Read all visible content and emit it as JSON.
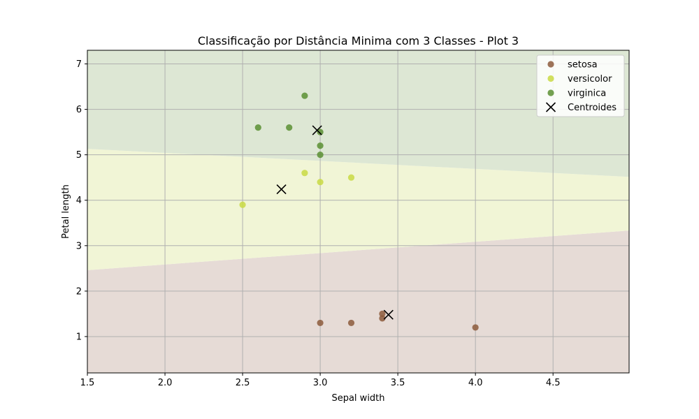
{
  "chart_data": {
    "type": "scatter",
    "title": "Classificação por Distância Minima com 3 Classes - Plot 3",
    "xlabel": "Sepal width",
    "ylabel": "Petal length",
    "xlim": [
      1.5,
      4.99
    ],
    "ylim": [
      0.2,
      7.3
    ],
    "xticks": [
      1.5,
      2.0,
      2.5,
      3.0,
      3.5,
      4.0,
      4.5
    ],
    "yticks": [
      1,
      2,
      3,
      4,
      5,
      6,
      7
    ],
    "grid": true,
    "legend_position": "top-right",
    "series": [
      {
        "name": "setosa",
        "color": "#8c5a3c",
        "points": [
          [
            3.0,
            1.3
          ],
          [
            3.2,
            1.3
          ],
          [
            3.4,
            1.5
          ],
          [
            3.4,
            1.4
          ],
          [
            4.0,
            1.2
          ]
        ]
      },
      {
        "name": "versicolor",
        "color": "#c9d944",
        "points": [
          [
            2.5,
            3.9
          ],
          [
            2.9,
            4.6
          ],
          [
            3.0,
            4.4
          ],
          [
            3.2,
            4.5
          ]
        ]
      },
      {
        "name": "virginica",
        "color": "#5a8f32",
        "points": [
          [
            2.6,
            5.6
          ],
          [
            2.8,
            5.6
          ],
          [
            2.9,
            6.3
          ],
          [
            3.0,
            5.5
          ],
          [
            3.0,
            5.2
          ],
          [
            3.0,
            5.0
          ]
        ]
      }
    ],
    "centroids": {
      "name": "Centroides",
      "marker": "x",
      "color": "#000000",
      "points": [
        [
          3.44,
          1.48
        ],
        [
          2.75,
          4.24
        ],
        [
          2.98,
          5.54
        ]
      ]
    },
    "regions": [
      {
        "class": "setosa",
        "color": "#e6dbd6"
      },
      {
        "class": "versicolor",
        "color": "#f1f5d6"
      },
      {
        "class": "virginica",
        "color": "#dde7d4"
      }
    ]
  }
}
